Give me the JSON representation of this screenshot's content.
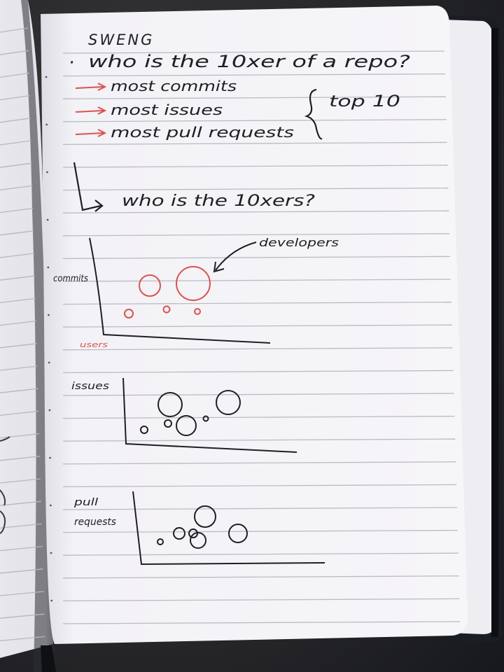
{
  "notebook": {
    "heading": "SWENG",
    "question": "who is the 10xer of a repo?",
    "bullet": "·",
    "arrow_items": [
      {
        "label": "most commits"
      },
      {
        "label": "most issues"
      },
      {
        "label": "most pull requests"
      }
    ],
    "brace_label": "top 10",
    "followup": "who is the 10xers?"
  },
  "sketches": {
    "commits_plot": {
      "ylabel": "commits",
      "xlabel": "users",
      "annotation": "developers",
      "circles": [
        {
          "size": "medium"
        },
        {
          "size": "large"
        },
        {
          "size": "small"
        },
        {
          "size": "small"
        },
        {
          "size": "small"
        }
      ]
    },
    "issues_plot": {
      "ylabel": "issues",
      "circles": [
        {
          "size": "medium"
        },
        {
          "size": "medium"
        },
        {
          "size": "medium"
        },
        {
          "size": "small"
        },
        {
          "size": "small"
        },
        {
          "size": "small"
        }
      ]
    },
    "pull_requests_plot": {
      "ylabel_line1": "pull",
      "ylabel_line2": "requests",
      "circles": [
        {
          "size": "medium"
        },
        {
          "size": "medium"
        },
        {
          "size": "medium"
        },
        {
          "size": "small"
        },
        {
          "size": "small"
        },
        {
          "size": "small"
        }
      ]
    }
  },
  "colors": {
    "ink_black": "#1f1f24",
    "ink_red": "#d9534f",
    "paper": "#f4f3f6",
    "rule_line": "#b9bcc6",
    "cover": "#17181c"
  }
}
